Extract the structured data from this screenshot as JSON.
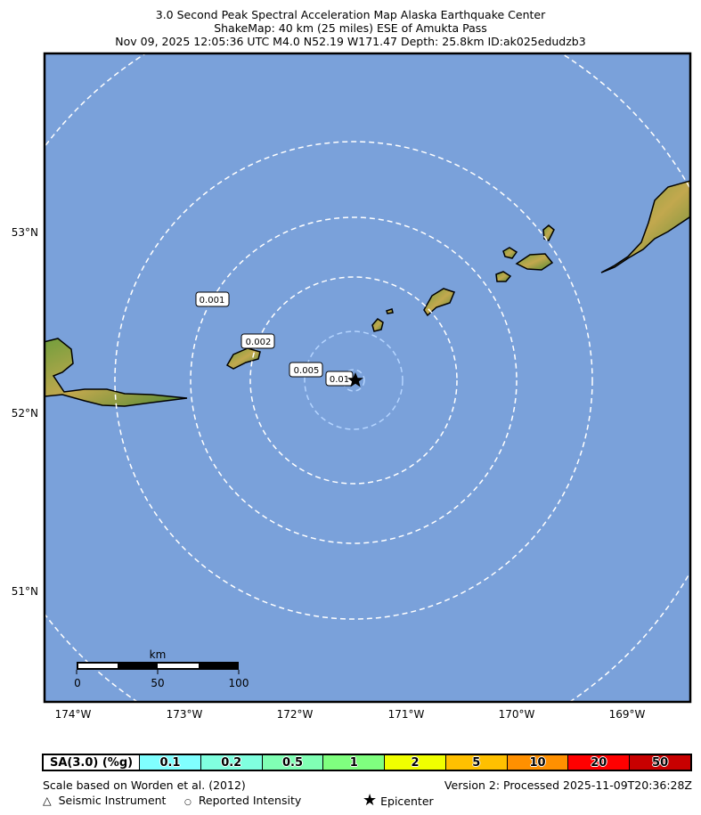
{
  "title": {
    "line1": "3.0 Second Peak Spectral Acceleration Map Alaska Earthquake Center",
    "line2": "ShakeMap: 40 km (25 miles) ESE of Amukta Pass",
    "line3": "Nov 09, 2025 12:05:36 UTC M4.0 N52.19 W171.47 Depth: 25.8km ID:ak025edudzb3"
  },
  "map": {
    "ocean_color": "#7aa1da",
    "lat_labels": [
      "53°N",
      "52°N",
      "51°N"
    ],
    "lon_labels": [
      "174°W",
      "173°W",
      "172°W",
      "171°W",
      "170°W",
      "169°W"
    ],
    "contour_labels": [
      "0.001",
      "0.002",
      "0.005",
      "0.01"
    ],
    "epicenter": {
      "lat": 52.19,
      "lon": -171.47,
      "icon": "star-icon"
    },
    "scale_bar": {
      "unit": "km",
      "ticks": [
        "0",
        "50",
        "100"
      ]
    }
  },
  "legend": {
    "label": "SA(3.0) (%g)",
    "bins": [
      {
        "value": "0.1",
        "color": "#80ffff"
      },
      {
        "value": "0.2",
        "color": "#80ffdf"
      },
      {
        "value": "0.5",
        "color": "#80ffb4"
      },
      {
        "value": "1",
        "color": "#7fff7f"
      },
      {
        "value": "2",
        "color": "#f0ff00"
      },
      {
        "value": "5",
        "color": "#ffc000"
      },
      {
        "value": "10",
        "color": "#ff9000"
      },
      {
        "value": "20",
        "color": "#ff0000"
      },
      {
        "value": "50",
        "color": "#c80000"
      }
    ]
  },
  "footer": {
    "scale_note": "Scale based on Worden et al. (2012)",
    "version": "Version 2: Processed 2025-11-09T20:36:28Z",
    "seismic_instrument": "Seismic Instrument",
    "reported_intensity": "Reported Intensity",
    "epicenter": "Epicenter"
  }
}
